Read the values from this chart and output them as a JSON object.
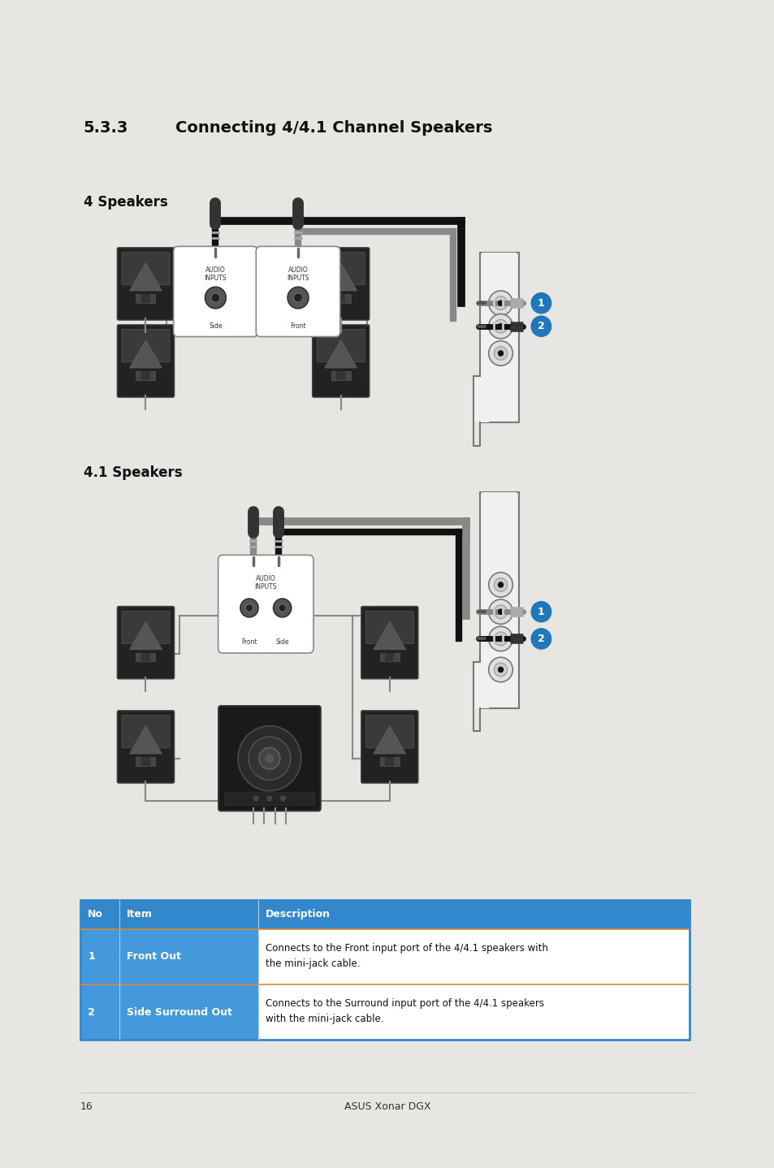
{
  "bg_color": "#e8e6e3",
  "page_bg": "#ffffff",
  "title_number": "5.3.3",
  "title_text": "Connecting 4/4.1 Channel Speakers",
  "section1_label": "4 Speakers",
  "section2_label": "4.1 Speakers",
  "table_header": [
    "No",
    "Item",
    "Description"
  ],
  "table_rows": [
    [
      "1",
      "Front Out",
      "Connects to the Front input port of the 4/4.1 speakers with\nthe mini-jack cable."
    ],
    [
      "2",
      "Side Surround Out",
      "Connects to the Surround input port of the 4/4.1 speakers\nwith the mini-jack cable."
    ]
  ],
  "table_header_bg": "#3388cc",
  "table_row_bg": "#4499dd",
  "table_border_orange": "#dd8833",
  "table_outer_border": "#3388cc",
  "page_number": "16",
  "footer_text": "ASUS Xonar DGX",
  "badge_color": "#2277bb",
  "badge_text_color": "#ffffff",
  "dark_speaker": "#2a2a2a",
  "card_color": "#f2f2f2",
  "cable_dark": "#111111",
  "cable_gray": "#888888"
}
